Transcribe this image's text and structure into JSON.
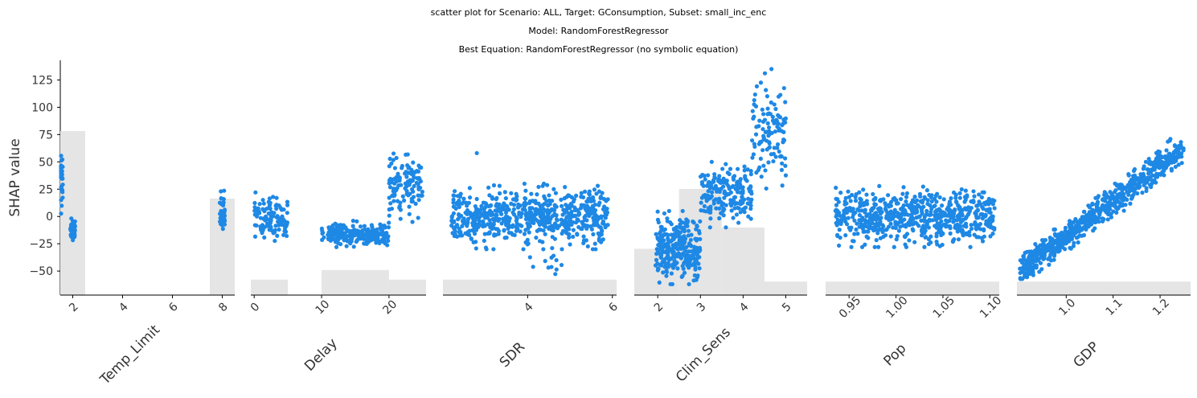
{
  "titles": {
    "line1": "scatter plot for Scenario: ALL, Target: GConsumption, Subset: small_inc_enc",
    "line2": "Model: RandomForestRegressor",
    "line3": "Best Equation: RandomForestRegressor (no symbolic equation)"
  },
  "chart_data": {
    "type": "scatter",
    "ylabel": "SHAP value",
    "ylim": [
      -72,
      143
    ],
    "yticks": [
      -50,
      -25,
      0,
      25,
      50,
      75,
      100,
      125
    ],
    "point_color": "#1E88E5",
    "hist_color": "#E5E5E5",
    "panels": [
      {
        "xlabel": "Temp_Limit",
        "xlim": [
          1.5,
          8.5
        ],
        "xticks": [
          2,
          4,
          6,
          8
        ],
        "xtick_labels": [
          "2",
          "4",
          "6",
          "8"
        ],
        "clusters": [
          {
            "x": [
              1.5,
              1.6
            ],
            "y": [
              -5,
              70
            ],
            "n": 35
          },
          {
            "x": [
              1.9,
              2.1
            ],
            "y": [
              -25,
              0
            ],
            "n": 45
          },
          {
            "x": [
              7.9,
              8.1
            ],
            "y": [
              -25,
              26
            ],
            "n": 40
          }
        ],
        "hist": [
          {
            "x0": 1.5,
            "x1": 2.5,
            "h": 0.85
          },
          {
            "x0": 7.5,
            "x1": 8.5,
            "h": 0.5
          }
        ]
      },
      {
        "xlabel": "Delay",
        "xlim": [
          -0.5,
          25.5
        ],
        "xticks": [
          0,
          10,
          20
        ],
        "xtick_labels": [
          "0",
          "10",
          "20"
        ],
        "clusters": [
          {
            "x": [
              0,
              5
            ],
            "y": [
              -25,
              24
            ],
            "n": 110
          },
          {
            "x": [
              10,
              20
            ],
            "y": [
              -28,
              -4
            ],
            "n": 230
          },
          {
            "x": [
              20,
              25
            ],
            "y": [
              -5,
              65
            ],
            "n": 120
          }
        ],
        "hist": [
          {
            "x0": -0.5,
            "x1": 5,
            "h": 0.08
          },
          {
            "x0": 10,
            "x1": 20,
            "h": 0.13
          },
          {
            "x0": 20,
            "x1": 25.5,
            "h": 0.08
          }
        ]
      },
      {
        "xlabel": "SDR",
        "xlim": [
          2.0,
          6.1
        ],
        "xticks": [
          4,
          6
        ],
        "xtick_labels": [
          "4",
          "6"
        ],
        "clusters": [
          {
            "x": [
              2.2,
              5.9
            ],
            "y": [
              -30,
              30
            ],
            "n": 650
          },
          {
            "x": [
              4.0,
              5.0
            ],
            "y": [
              -58,
              -30
            ],
            "n": 12
          },
          {
            "x": [
              2.8,
              2.8
            ],
            "y": [
              58,
              58
            ],
            "n": 1
          }
        ],
        "hist": [
          {
            "x0": 2.0,
            "x1": 6.1,
            "h": 0.08
          }
        ]
      },
      {
        "xlabel": "Clim_Sens",
        "xlim": [
          1.45,
          5.5
        ],
        "xticks": [
          2,
          3,
          4,
          5
        ],
        "xtick_labels": [
          "2",
          "3",
          "4",
          "5"
        ],
        "clusters": [
          {
            "x": [
              1.95,
              3.0
            ],
            "y": [
              -62,
              5
            ],
            "n": 280
          },
          {
            "x": [
              3.0,
              4.2
            ],
            "y": [
              -10,
              50
            ],
            "n": 180
          },
          {
            "x": [
              4.2,
              5.0
            ],
            "y": [
              20,
              135
            ],
            "n": 110
          }
        ],
        "hist": [
          {
            "x0": 1.45,
            "x1": 2.5,
            "h": 0.24
          },
          {
            "x0": 2.5,
            "x1": 3.5,
            "h": 0.55
          },
          {
            "x0": 3.5,
            "x1": 4.5,
            "h": 0.35
          },
          {
            "x0": 4.5,
            "x1": 5.5,
            "h": 0.07
          }
        ]
      },
      {
        "xlabel": "Pop",
        "xlim": [
          0.925,
          1.11
        ],
        "xticks": [
          0.95,
          1.0,
          1.05,
          1.1
        ],
        "xtick_labels": [
          "0.95",
          "1.00",
          "1.05",
          "1.10"
        ],
        "clusters": [
          {
            "x": [
              0.935,
              1.105
            ],
            "y": [
              -28,
              28
            ],
            "n": 650
          }
        ],
        "hist": [
          {
            "x0": 0.925,
            "x1": 1.11,
            "h": 0.07
          }
        ]
      },
      {
        "xlabel": "GDP",
        "xlim": [
          0.895,
          1.265
        ],
        "xticks": [
          1.0,
          1.1,
          1.2
        ],
        "xtick_labels": [
          "1.0",
          "1.1",
          "1.2"
        ],
        "clusters": [
          {
            "x": [
              0.9,
              1.25
            ],
            "y": [
              -65,
              78
            ],
            "n": 700,
            "trend": true
          }
        ],
        "hist": [
          {
            "x0": 0.895,
            "x1": 1.265,
            "h": 0.07
          }
        ]
      }
    ]
  }
}
